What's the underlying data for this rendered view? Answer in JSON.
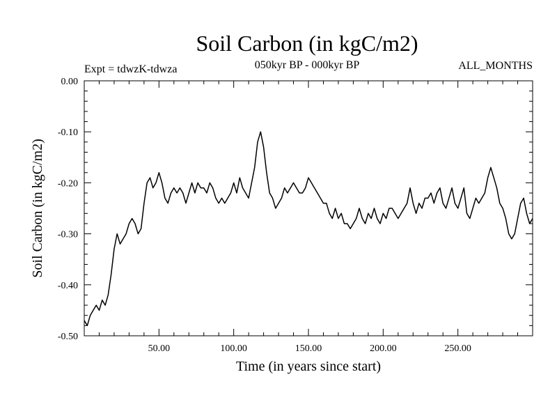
{
  "chart_data": {
    "type": "line",
    "title": "Soil Carbon (in kgC/m2)",
    "subtitle": "050kyr BP - 000kyr BP",
    "experiment_label": "Expt = tdwzK-tdwza",
    "months_label": "ALL_MONTHS",
    "xlabel": "Time (in years since start)",
    "ylabel": "Soil Carbon (in kgC/m2)",
    "xlim": [
      0,
      300
    ],
    "ylim": [
      -0.5,
      0.0
    ],
    "x_ticks": [
      50,
      100,
      150,
      200,
      250
    ],
    "x_tick_labels": [
      "50.00",
      "100.00",
      "150.00",
      "200.00",
      "250.00"
    ],
    "y_ticks": [
      0.0,
      -0.1,
      -0.2,
      -0.3,
      -0.4,
      -0.5
    ],
    "y_tick_labels": [
      "0.00",
      "-0.10",
      "-0.20",
      "-0.30",
      "-0.40",
      "-0.50"
    ],
    "grid": false,
    "line_color": "#000000",
    "series": [
      {
        "x": [
          0,
          2,
          4,
          6,
          8,
          10,
          12,
          14,
          16,
          18,
          20,
          22,
          24,
          26,
          28,
          30,
          32,
          34,
          36,
          38,
          40,
          42,
          44,
          46,
          48,
          50,
          52,
          54,
          56,
          58,
          60,
          62,
          64,
          66,
          68,
          70,
          72,
          74,
          76,
          78,
          80,
          82,
          84,
          86,
          88,
          90,
          92,
          94,
          96,
          98,
          100,
          102,
          104,
          106,
          108,
          110,
          112,
          114,
          116,
          118,
          120,
          122,
          124,
          126,
          128,
          130,
          132,
          134,
          136,
          138,
          140,
          142,
          144,
          146,
          148,
          150,
          152,
          154,
          156,
          158,
          160,
          162,
          164,
          166,
          168,
          170,
          172,
          174,
          176,
          178,
          180,
          182,
          184,
          186,
          188,
          190,
          192,
          194,
          196,
          198,
          200,
          202,
          204,
          206,
          208,
          210,
          212,
          214,
          216,
          218,
          220,
          222,
          224,
          226,
          228,
          230,
          232,
          234,
          236,
          238,
          240,
          242,
          244,
          246,
          248,
          250,
          252,
          254,
          256,
          258,
          260,
          262,
          264,
          266,
          268,
          270,
          272,
          274,
          276,
          278,
          280,
          282,
          284,
          286,
          288,
          290,
          292,
          294,
          296,
          298,
          300
        ],
        "values": [
          -0.47,
          -0.48,
          -0.46,
          -0.45,
          -0.44,
          -0.45,
          -0.43,
          -0.44,
          -0.42,
          -0.38,
          -0.33,
          -0.3,
          -0.32,
          -0.31,
          -0.3,
          -0.28,
          -0.27,
          -0.28,
          -0.3,
          -0.29,
          -0.24,
          -0.2,
          -0.19,
          -0.21,
          -0.2,
          -0.18,
          -0.2,
          -0.23,
          -0.24,
          -0.22,
          -0.21,
          -0.22,
          -0.21,
          -0.22,
          -0.24,
          -0.22,
          -0.2,
          -0.22,
          -0.2,
          -0.21,
          -0.21,
          -0.22,
          -0.2,
          -0.21,
          -0.23,
          -0.24,
          -0.23,
          -0.24,
          -0.23,
          -0.22,
          -0.2,
          -0.22,
          -0.19,
          -0.21,
          -0.22,
          -0.23,
          -0.2,
          -0.17,
          -0.12,
          -0.1,
          -0.13,
          -0.18,
          -0.22,
          -0.23,
          -0.25,
          -0.24,
          -0.23,
          -0.21,
          -0.22,
          -0.21,
          -0.2,
          -0.21,
          -0.22,
          -0.22,
          -0.21,
          -0.19,
          -0.2,
          -0.21,
          -0.22,
          -0.23,
          -0.24,
          -0.24,
          -0.26,
          -0.27,
          -0.25,
          -0.27,
          -0.26,
          -0.28,
          -0.28,
          -0.29,
          -0.28,
          -0.27,
          -0.25,
          -0.27,
          -0.28,
          -0.26,
          -0.27,
          -0.25,
          -0.27,
          -0.28,
          -0.26,
          -0.27,
          -0.25,
          -0.25,
          -0.26,
          -0.27,
          -0.26,
          -0.25,
          -0.24,
          -0.21,
          -0.24,
          -0.26,
          -0.24,
          -0.25,
          -0.23,
          -0.23,
          -0.22,
          -0.24,
          -0.22,
          -0.21,
          -0.24,
          -0.25,
          -0.23,
          -0.21,
          -0.24,
          -0.25,
          -0.23,
          -0.21,
          -0.26,
          -0.27,
          -0.25,
          -0.23,
          -0.24,
          -0.23,
          -0.22,
          -0.19,
          -0.17,
          -0.19,
          -0.21,
          -0.24,
          -0.25,
          -0.27,
          -0.3,
          -0.31,
          -0.3,
          -0.27,
          -0.24,
          -0.23,
          -0.26,
          -0.28,
          -0.27
        ]
      }
    ]
  }
}
